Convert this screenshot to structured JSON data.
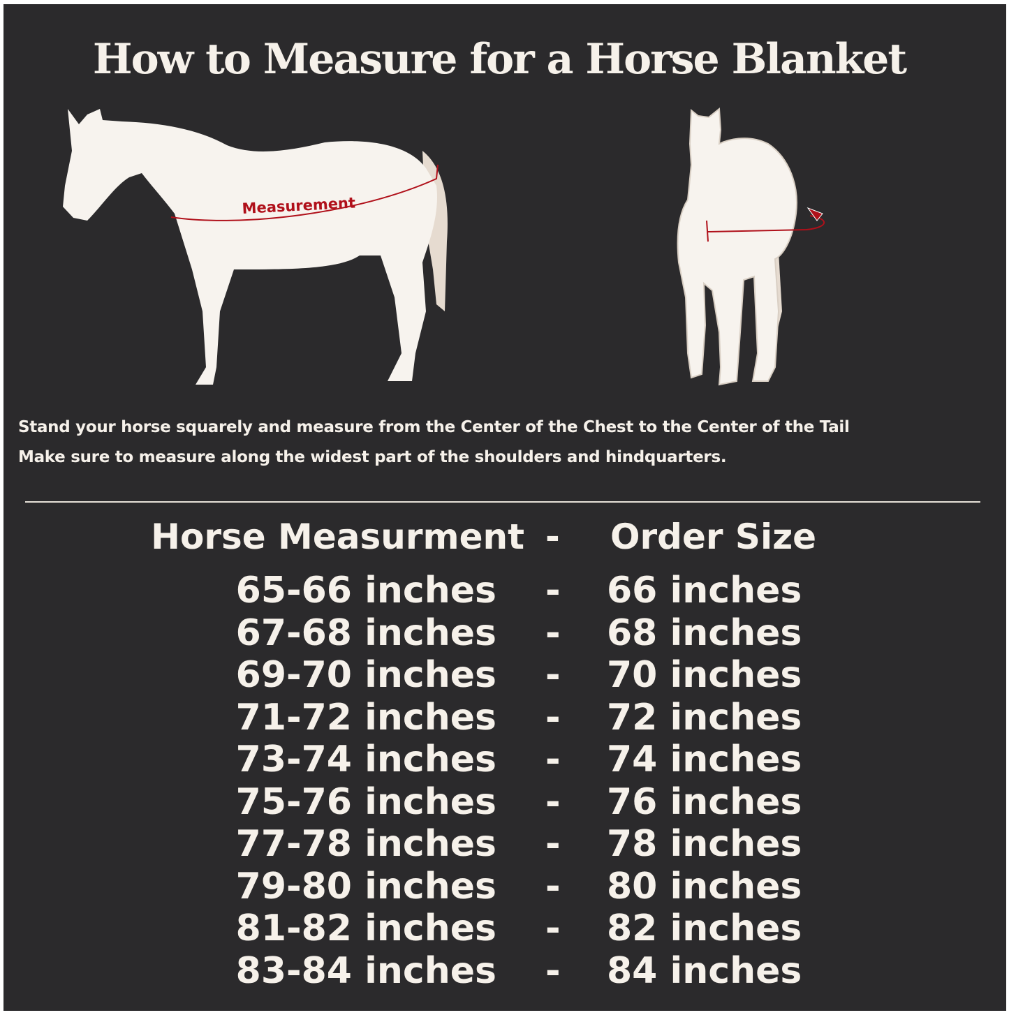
{
  "title": "How to Measure for a Horse Blanket",
  "illustrations": {
    "side_view_label": "Measurement",
    "accent_color": "#b0101a",
    "horse_color": "#f7f3ee",
    "tail_color": "#e6dbd0",
    "background_color": "#2b2a2c"
  },
  "instructions": [
    "Stand your horse squarely and measure from the Center of the Chest to the Center of the Tail",
    "Make sure to measure along the widest part of the shoulders and hindquarters."
  ],
  "table": {
    "headers": {
      "measurement": "Horse Measurment",
      "separator": "-",
      "size": "Order Size"
    },
    "rows": [
      {
        "measurement": "65-66 inches",
        "separator": "-",
        "size": "66 inches"
      },
      {
        "measurement": "67-68 inches",
        "separator": "-",
        "size": "68 inches"
      },
      {
        "measurement": "69-70 inches",
        "separator": "-",
        "size": "70 inches"
      },
      {
        "measurement": "71-72 inches",
        "separator": "-",
        "size": "72 inches"
      },
      {
        "measurement": "73-74 inches",
        "separator": "-",
        "size": "74 inches"
      },
      {
        "measurement": "75-76 inches",
        "separator": "-",
        "size": "76 inches"
      },
      {
        "measurement": "77-78 inches",
        "separator": "-",
        "size": "78 inches"
      },
      {
        "measurement": "79-80 inches",
        "separator": "-",
        "size": "80 inches"
      },
      {
        "measurement": "81-82 inches",
        "separator": "-",
        "size": "82 inches"
      },
      {
        "measurement": "83-84 inches",
        "separator": "-",
        "size": "84 inches"
      }
    ]
  }
}
